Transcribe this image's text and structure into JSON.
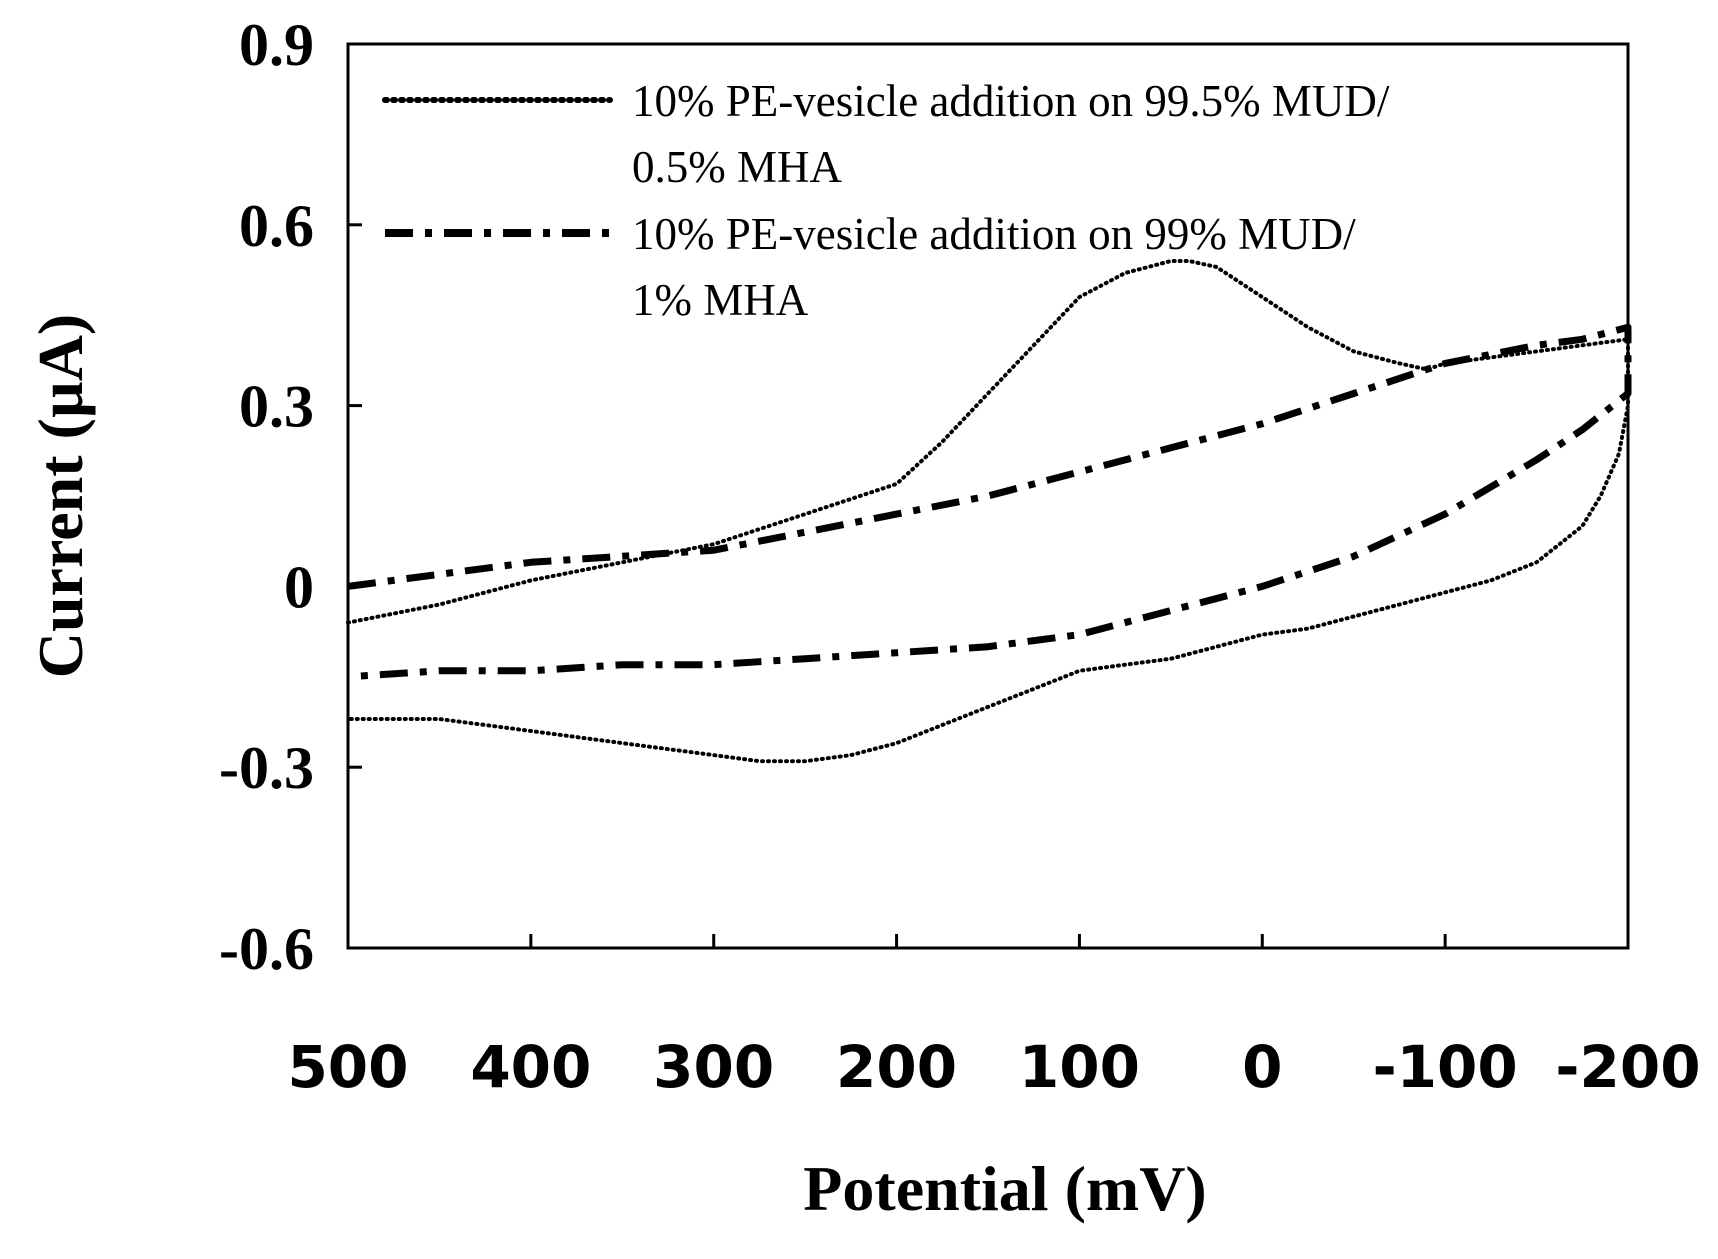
{
  "chart_data": {
    "type": "line",
    "xlabel": "Potential (mV)",
    "ylabel": "Current (µA)",
    "xlim": [
      500,
      -200
    ],
    "ylim": [
      -0.6,
      0.9
    ],
    "x_ticks": [
      500,
      400,
      300,
      200,
      100,
      0,
      -100,
      -200
    ],
    "x_tick_labels": [
      "500",
      "400",
      "300",
      "200",
      "100",
      "0",
      "-100",
      "-200"
    ],
    "y_ticks": [
      0.9,
      0.6,
      0.3,
      0,
      -0.3,
      -0.6
    ],
    "y_tick_labels": [
      "0.9",
      "0.6",
      "0.3",
      "0",
      "-0.3",
      "-0.6"
    ],
    "grid": false,
    "legend_position": "top-right",
    "series": [
      {
        "name": "10% PE-vesicle addition on 99.5% MUD/0.5% MHA",
        "legend_lines": [
          "10% PE-vesicle addition on 99.5% MUD/",
          "0.5% MHA"
        ],
        "style": "dotted",
        "x": [
          500,
          450,
          400,
          350,
          300,
          250,
          200,
          175,
          150,
          125,
          100,
          75,
          50,
          40,
          25,
          0,
          -25,
          -50,
          -75,
          -90,
          -100,
          -125,
          -150,
          -175,
          -200,
          -200,
          -195,
          -185,
          -175,
          -150,
          -125,
          -100,
          -75,
          -50,
          -25,
          0,
          25,
          50,
          75,
          100,
          125,
          150,
          175,
          200,
          225,
          250,
          275,
          300,
          350,
          400,
          450,
          500
        ],
        "y": [
          -0.06,
          -0.03,
          0.01,
          0.04,
          0.07,
          0.12,
          0.17,
          0.24,
          0.32,
          0.4,
          0.48,
          0.52,
          0.54,
          0.54,
          0.53,
          0.48,
          0.43,
          0.39,
          0.37,
          0.36,
          0.37,
          0.38,
          0.39,
          0.4,
          0.41,
          0.3,
          0.22,
          0.15,
          0.1,
          0.04,
          0.01,
          -0.01,
          -0.03,
          -0.05,
          -0.07,
          -0.08,
          -0.1,
          -0.12,
          -0.13,
          -0.14,
          -0.17,
          -0.2,
          -0.23,
          -0.26,
          -0.28,
          -0.29,
          -0.29,
          -0.28,
          -0.26,
          -0.24,
          -0.22,
          -0.22
        ]
      },
      {
        "name": "10% PE-vesicle addition on 99% MUD/1% MHA",
        "legend_lines": [
          "10% PE-vesicle addition on 99% MUD/",
          "1% MHA"
        ],
        "style": "dash-dot",
        "x": [
          500,
          450,
          400,
          350,
          300,
          250,
          200,
          150,
          100,
          50,
          0,
          -50,
          -100,
          -150,
          -175,
          -200,
          -200,
          -175,
          -150,
          -100,
          -50,
          0,
          50,
          100,
          150,
          200,
          250,
          300,
          350,
          400,
          450,
          500
        ],
        "y": [
          0.0,
          0.02,
          0.04,
          0.05,
          0.06,
          0.09,
          0.12,
          0.15,
          0.19,
          0.23,
          0.27,
          0.32,
          0.37,
          0.4,
          0.41,
          0.43,
          0.32,
          0.26,
          0.21,
          0.12,
          0.05,
          0.0,
          -0.04,
          -0.08,
          -0.1,
          -0.11,
          -0.12,
          -0.13,
          -0.13,
          -0.14,
          -0.14,
          -0.15
        ]
      }
    ]
  }
}
